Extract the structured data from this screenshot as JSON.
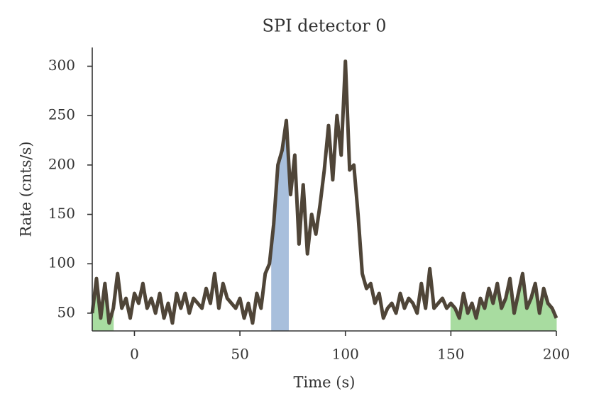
{
  "chart_data": {
    "type": "line",
    "title": "SPI detector 0",
    "x_label": "Time (s)",
    "y_label": "Rate (cnts/s)",
    "xlim": [
      -20,
      200
    ],
    "xticks": [
      0,
      50,
      100,
      150,
      200
    ],
    "ylim": [
      32,
      319
    ],
    "yticks": [
      50,
      100,
      150,
      200,
      250,
      300
    ],
    "shaded_regions": [
      {
        "range": [
          -20,
          -10
        ],
        "color": "#a8dca0"
      },
      {
        "range": [
          65,
          73
        ],
        "color": "#a8bfdc"
      },
      {
        "range": [
          150,
          200
        ],
        "color": "#a8dca0"
      }
    ],
    "x": [
      -20,
      -18,
      -16,
      -14,
      -12,
      -10,
      -8,
      -6,
      -4,
      -2,
      0,
      2,
      4,
      6,
      8,
      10,
      12,
      14,
      16,
      18,
      20,
      22,
      24,
      26,
      28,
      30,
      32,
      34,
      36,
      38,
      40,
      42,
      44,
      46,
      48,
      50,
      52,
      54,
      56,
      58,
      60,
      62,
      64,
      66,
      68,
      70,
      72,
      74,
      76,
      78,
      80,
      82,
      84,
      86,
      88,
      90,
      92,
      94,
      96,
      98,
      100,
      102,
      104,
      106,
      108,
      110,
      112,
      114,
      116,
      118,
      120,
      122,
      124,
      126,
      128,
      130,
      132,
      134,
      136,
      138,
      140,
      142,
      144,
      146,
      148,
      150,
      152,
      154,
      156,
      158,
      160,
      162,
      164,
      166,
      168,
      170,
      172,
      174,
      176,
      178,
      180,
      182,
      184,
      186,
      188,
      190,
      192,
      194,
      196,
      198,
      200
    ],
    "series": [
      {
        "color": "#4f4538",
        "values": [
          50,
          85,
          45,
          80,
          40,
          55,
          90,
          55,
          65,
          45,
          70,
          60,
          80,
          55,
          65,
          50,
          70,
          45,
          60,
          40,
          70,
          55,
          70,
          50,
          65,
          60,
          55,
          75,
          60,
          90,
          55,
          80,
          65,
          60,
          55,
          65,
          45,
          60,
          40,
          70,
          55,
          90,
          100,
          140,
          200,
          215,
          245,
          170,
          210,
          120,
          180,
          110,
          150,
          130,
          160,
          195,
          240,
          185,
          250,
          210,
          305,
          195,
          200,
          150,
          90,
          75,
          80,
          60,
          70,
          45,
          55,
          60,
          50,
          70,
          55,
          65,
          60,
          50,
          80,
          55,
          95,
          55,
          60,
          65,
          55,
          60,
          55,
          45,
          70,
          50,
          60,
          45,
          65,
          55,
          75,
          60,
          80,
          55,
          65,
          85,
          50,
          70,
          90,
          55,
          65,
          80,
          50,
          75,
          60,
          55,
          45
        ]
      }
    ]
  }
}
